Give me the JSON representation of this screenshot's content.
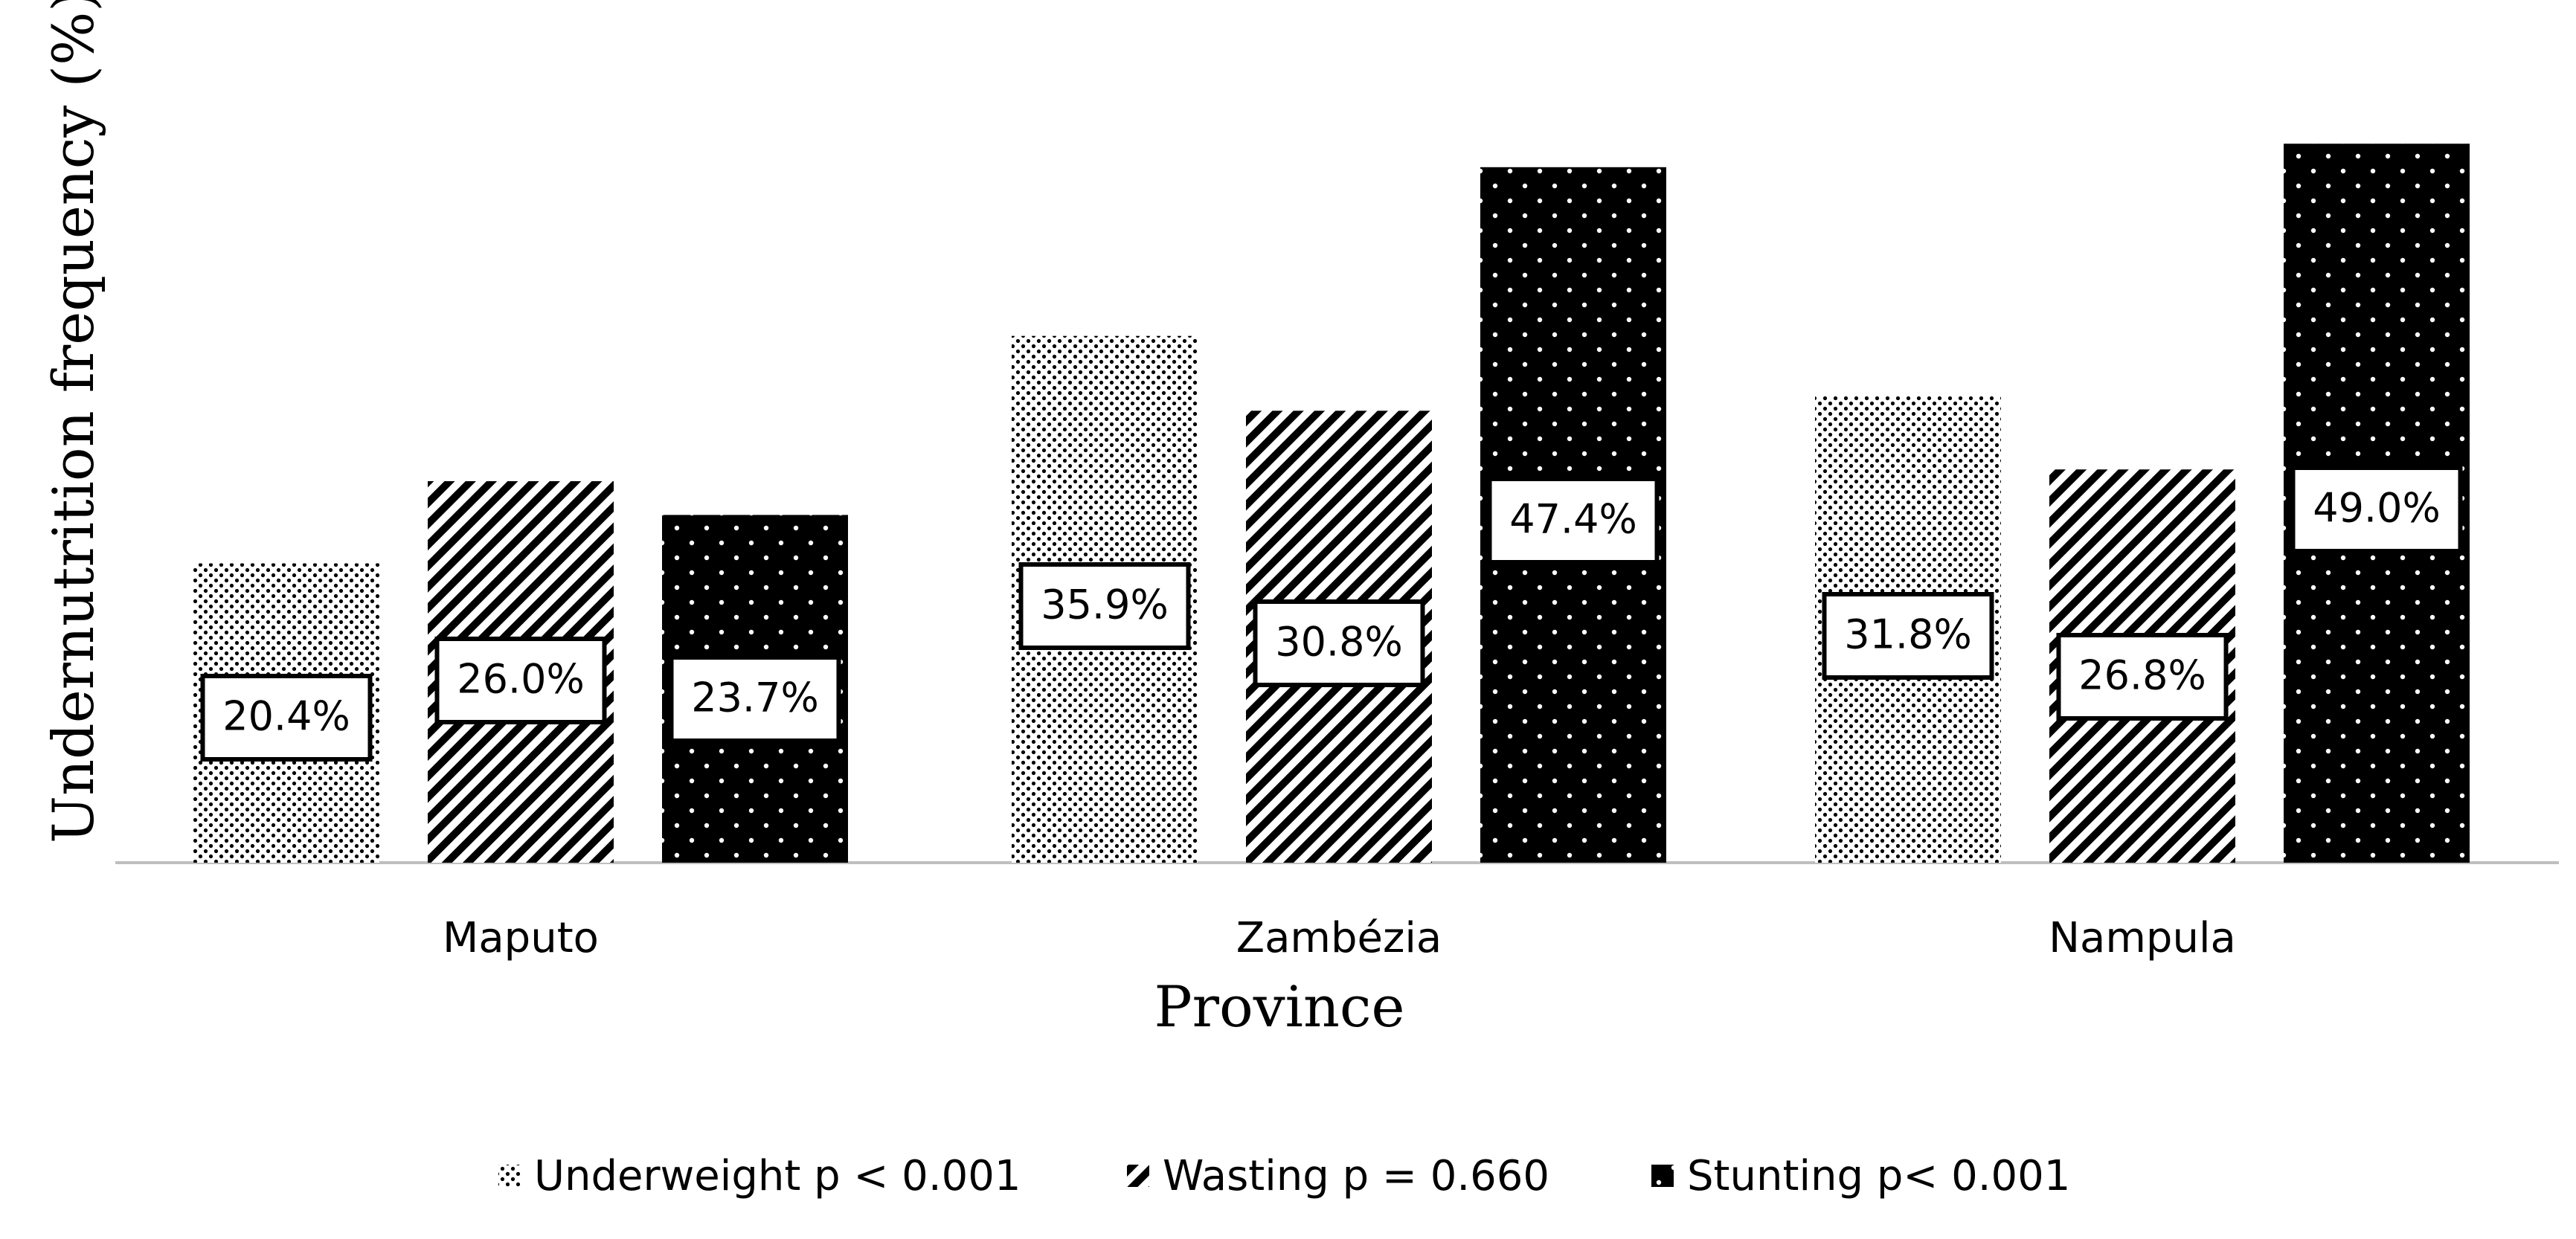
{
  "chart_data": {
    "type": "bar",
    "categories": [
      "Maputo",
      "Zambézia",
      "Nampula"
    ],
    "series": [
      {
        "name": "Underweight p < 0.001",
        "values": [
          20.4,
          35.9,
          31.8
        ],
        "pattern": "dots-dense",
        "labels": [
          "20.4%",
          "35.9%",
          "31.8%"
        ]
      },
      {
        "name": "Wasting p = 0.660",
        "values": [
          26.0,
          30.8,
          26.8
        ],
        "pattern": "diagonal-stripes",
        "labels": [
          "26.0%",
          "30.8%",
          "26.8%"
        ]
      },
      {
        "name": "Stunting p< 0.001",
        "values": [
          23.7,
          47.4,
          49.0
        ],
        "pattern": "black-white-dots",
        "labels": [
          "23.7%",
          "47.4%",
          "49.0%"
        ]
      }
    ],
    "title": "",
    "xlabel": "Province",
    "ylabel": "Undernutrition frequency (%)",
    "ylim": [
      0,
      50
    ],
    "grid": false,
    "legend_position": "bottom"
  },
  "colors": {
    "ink": "#000000",
    "axis": "#bfbfbf",
    "background": "#ffffff"
  }
}
